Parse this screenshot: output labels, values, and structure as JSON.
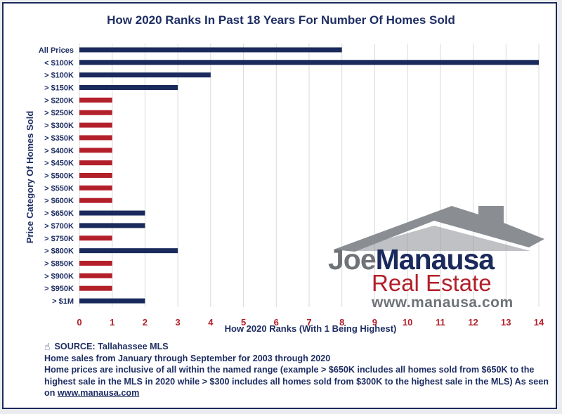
{
  "chart_data": {
    "type": "bar",
    "orientation": "horizontal",
    "title": "How 2020 Ranks In Past 18 Years For Number Of Homes Sold",
    "xlabel": "How 2020 Ranks (With 1 Being Highest)",
    "ylabel": "Price Category Of Homes Sold",
    "xlim": [
      0,
      14
    ],
    "xticks": [
      "0",
      "1",
      "2",
      "3",
      "4",
      "5",
      "6",
      "7",
      "8",
      "9",
      "10",
      "11",
      "12",
      "13",
      "14"
    ],
    "grid": true,
    "categories": [
      "All Prices",
      "< $100K",
      "> $100K",
      "> $150K",
      "> $200K",
      "> $250K",
      "> $300K",
      "> $350K",
      "> $400K",
      "> $450K",
      "> $500K",
      "> $550K",
      "> $600K",
      "> $650K",
      "> $700K",
      "> $750K",
      "> $800K",
      "> $850K",
      "> $900K",
      "> $950K",
      "> $1M"
    ],
    "values": [
      8,
      14,
      4,
      3,
      1,
      1,
      1,
      1,
      1,
      1,
      1,
      1,
      1,
      2,
      2,
      1,
      3,
      1,
      1,
      1,
      2
    ],
    "colors": {
      "rank_above_1": "#1b2a5c",
      "rank_1": "#b3202a",
      "tick_labels": "#b3202a",
      "text": "#1e2e63"
    }
  },
  "notes": {
    "source": "SOURCE: Tallahassee MLS",
    "line1": "Home sales from January through September for 2003 through 2020",
    "line2": "Home prices are inclusive of all within the named range (example > $650K includes all homes sold from $650K to the highest sale in the MLS in 2020 while > $300 includes all homes sold from $300K to the highest sale in the MLS)        As seen on",
    "link": "www.manausa.com"
  },
  "logo": {
    "name_first": "Joe",
    "name_last": "Manausa",
    "tagline": "Real Estate",
    "url": "www.manausa.com",
    "colors": {
      "gray": "#6f7378",
      "navy": "#1b2a5c",
      "red": "#b3202a"
    }
  }
}
